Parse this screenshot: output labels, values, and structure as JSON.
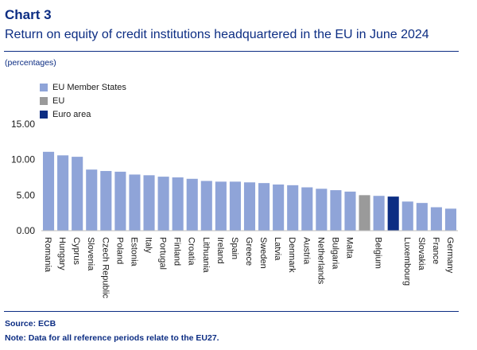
{
  "header": {
    "chart_number": "Chart 3",
    "title": "Return on equity of credit institutions headquartered in the EU in June 2024",
    "unit": "(percentages)"
  },
  "footer": {
    "source": "Source: ECB",
    "note": "Note: Data for all reference periods relate to the EU27."
  },
  "colors": {
    "member_states": "#8fa4d8",
    "eu": "#9a9a9a",
    "euro_area": "#0c2d83",
    "title": "#0c2d83"
  },
  "chart_data": {
    "type": "bar",
    "title": "Return on equity of credit institutions headquartered in the EU in June 2024",
    "ylabel": "",
    "xlabel": "",
    "ylim": [
      0,
      15
    ],
    "yticks": [
      "0.00",
      "5.00",
      "10.00",
      "15.00"
    ],
    "grid": false,
    "legend_position": "top-left",
    "legend": [
      {
        "name": "EU Member States",
        "color_key": "member_states"
      },
      {
        "name": "EU",
        "color_key": "eu"
      },
      {
        "name": "Euro area",
        "color_key": "euro_area"
      }
    ],
    "categories": [
      "Romania",
      "Hungary",
      "Cyprus",
      "Slovenia",
      "Czech Republic",
      "Poland",
      "Estonia",
      "Italy",
      "Portugal",
      "Finland",
      "Croatia",
      "Lithuania",
      "Ireland",
      "Spain",
      "Greece",
      "Sweden",
      "Latvia",
      "Denmark",
      "Austria",
      "Netherlands",
      "Bulgaria",
      "Malta",
      "",
      "Belgium",
      "",
      "Luxembourg",
      "Slovakia",
      "France",
      "Germany"
    ],
    "values": [
      11.1,
      10.6,
      10.4,
      8.6,
      8.4,
      8.3,
      7.9,
      7.8,
      7.6,
      7.5,
      7.3,
      7.0,
      6.9,
      6.9,
      6.8,
      6.7,
      6.5,
      6.4,
      6.1,
      5.9,
      5.7,
      5.5,
      5.0,
      4.9,
      4.8,
      4.1,
      3.9,
      3.3,
      3.1
    ],
    "series_membership": [
      "member_states",
      "member_states",
      "member_states",
      "member_states",
      "member_states",
      "member_states",
      "member_states",
      "member_states",
      "member_states",
      "member_states",
      "member_states",
      "member_states",
      "member_states",
      "member_states",
      "member_states",
      "member_states",
      "member_states",
      "member_states",
      "member_states",
      "member_states",
      "member_states",
      "member_states",
      "eu",
      "member_states",
      "euro_area",
      "member_states",
      "member_states",
      "member_states",
      "member_states"
    ]
  }
}
